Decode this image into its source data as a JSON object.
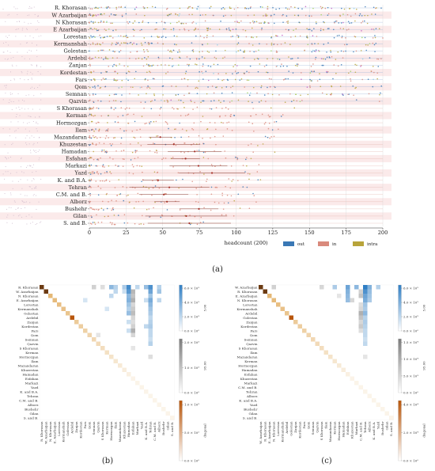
{
  "provinces_a": [
    "R. Khorasan",
    "W Azarbaijan",
    "N Khorasan",
    "E Azarbaijan",
    "Lorestan",
    "Kermanshah",
    "Golestan",
    "Ardebil",
    "Zanjan",
    "Kordestan",
    "Fars",
    "Qom",
    "Semnan",
    "Qazvin",
    "S Khorasan",
    "Kerman",
    "Hormozgan",
    "Ilam",
    "Mazandaran",
    "Khuzestan",
    "Hamadan",
    "Esfahan",
    "Markazi",
    "Yazd",
    "K. and B.A.",
    "Tehran",
    "C.M. and B.",
    "Alborz",
    "Bushehr",
    "Gilan",
    "S. and B."
  ],
  "chart_data": [
    {
      "panel": "(a)",
      "type": "scatter",
      "xlabel": "headcount (200)",
      "xlim": [
        0,
        200
      ],
      "xticks": [
        0,
        25,
        50,
        75,
        100,
        125,
        150,
        175,
        200
      ],
      "legend": {
        "placement": "bottom-right",
        "entries": [
          {
            "name": "out",
            "color": "#3a78b5"
          },
          {
            "name": "in",
            "color": "#d98a7c"
          },
          {
            "name": "intra",
            "color": "#b8a43a"
          }
        ]
      },
      "grid": true
    },
    {
      "panel": "(b)",
      "type": "heatmap",
      "rows": [
        "R. Khorasan",
        "W. Azarbaijan",
        "N. Khorasan",
        "E. Azarbaijan",
        "Lorestan",
        "Kermanshah",
        "Golestan",
        "Ardebil",
        "Zanjan",
        "Kordestan",
        "Fars",
        "Qom",
        "Semnan",
        "Qazvin",
        "S Khorasan",
        "Kerman",
        "Hormozgan",
        "Ilam",
        "Mazandaran",
        "Khuzestan",
        "Hamadan",
        "Esfahan",
        "Markazi",
        "Yazd",
        "K. and B.A.",
        "Tehran",
        "C.M. and B.",
        "Alborz",
        "Bushehr",
        "Gilan",
        "S. and B."
      ],
      "colorbars": [
        {
          "label": "5.00",
          "ticks": [
            "0.0 × 10⁰",
            "2.0 × 10³",
            "4.0 × 10³",
            "6.0 × 10³"
          ],
          "color": "#2f7ec4"
        },
        {
          "label": "95.00",
          "ticks": [
            "0.0 × 10⁰",
            "1.0 × 10³",
            "2.0 × 10³"
          ],
          "color": "#7b7b7b"
        },
        {
          "label": "diagonal",
          "ticks": [
            "0.0 × 10⁰",
            "5.0 × 10²",
            "1.0 × 10³"
          ],
          "color": "#b8560b"
        }
      ]
    },
    {
      "panel": "(c)",
      "type": "heatmap",
      "rows": [
        "W. Azarbaijan",
        "R. Khorasan",
        "E. Azarbaijan",
        "N. Khorasan",
        "Lorestan",
        "Kermanshah",
        "Ardebil",
        "Golestan",
        "Zanjan",
        "Kordestan",
        "Fars",
        "Qom",
        "Semnan",
        "Qazvin",
        "S Khorasan",
        "Ilam",
        "Mazandaran",
        "Kerman",
        "Hormozgan",
        "Hamadan",
        "Esfahan",
        "Khuzestan",
        "Markazi",
        "C.M. and B.",
        "Tehran",
        "Alborz",
        "K. and B.A.",
        "Yazd",
        "Bushehr",
        "Gilan",
        "S. and B."
      ],
      "colorbars": [
        {
          "label": "5.00",
          "ticks": [
            "0.0 × 10⁰",
            "2.0 × 10⁵",
            "4.0 × 10⁵",
            "6.0 × 10⁵"
          ],
          "color": "#2f7ec4"
        },
        {
          "label": "95.00",
          "ticks": [
            "0.0 × 10⁰",
            "5.0 × 10³",
            "1.0 × 10⁴",
            "1.5 × 10⁴"
          ],
          "color": "#7b7b7b"
        },
        {
          "label": "diagonal",
          "ticks": [
            "0.0 × 10⁰",
            "2.0 × 10⁴",
            "4.0 × 10⁴"
          ],
          "color": "#b8560b"
        }
      ]
    }
  ]
}
